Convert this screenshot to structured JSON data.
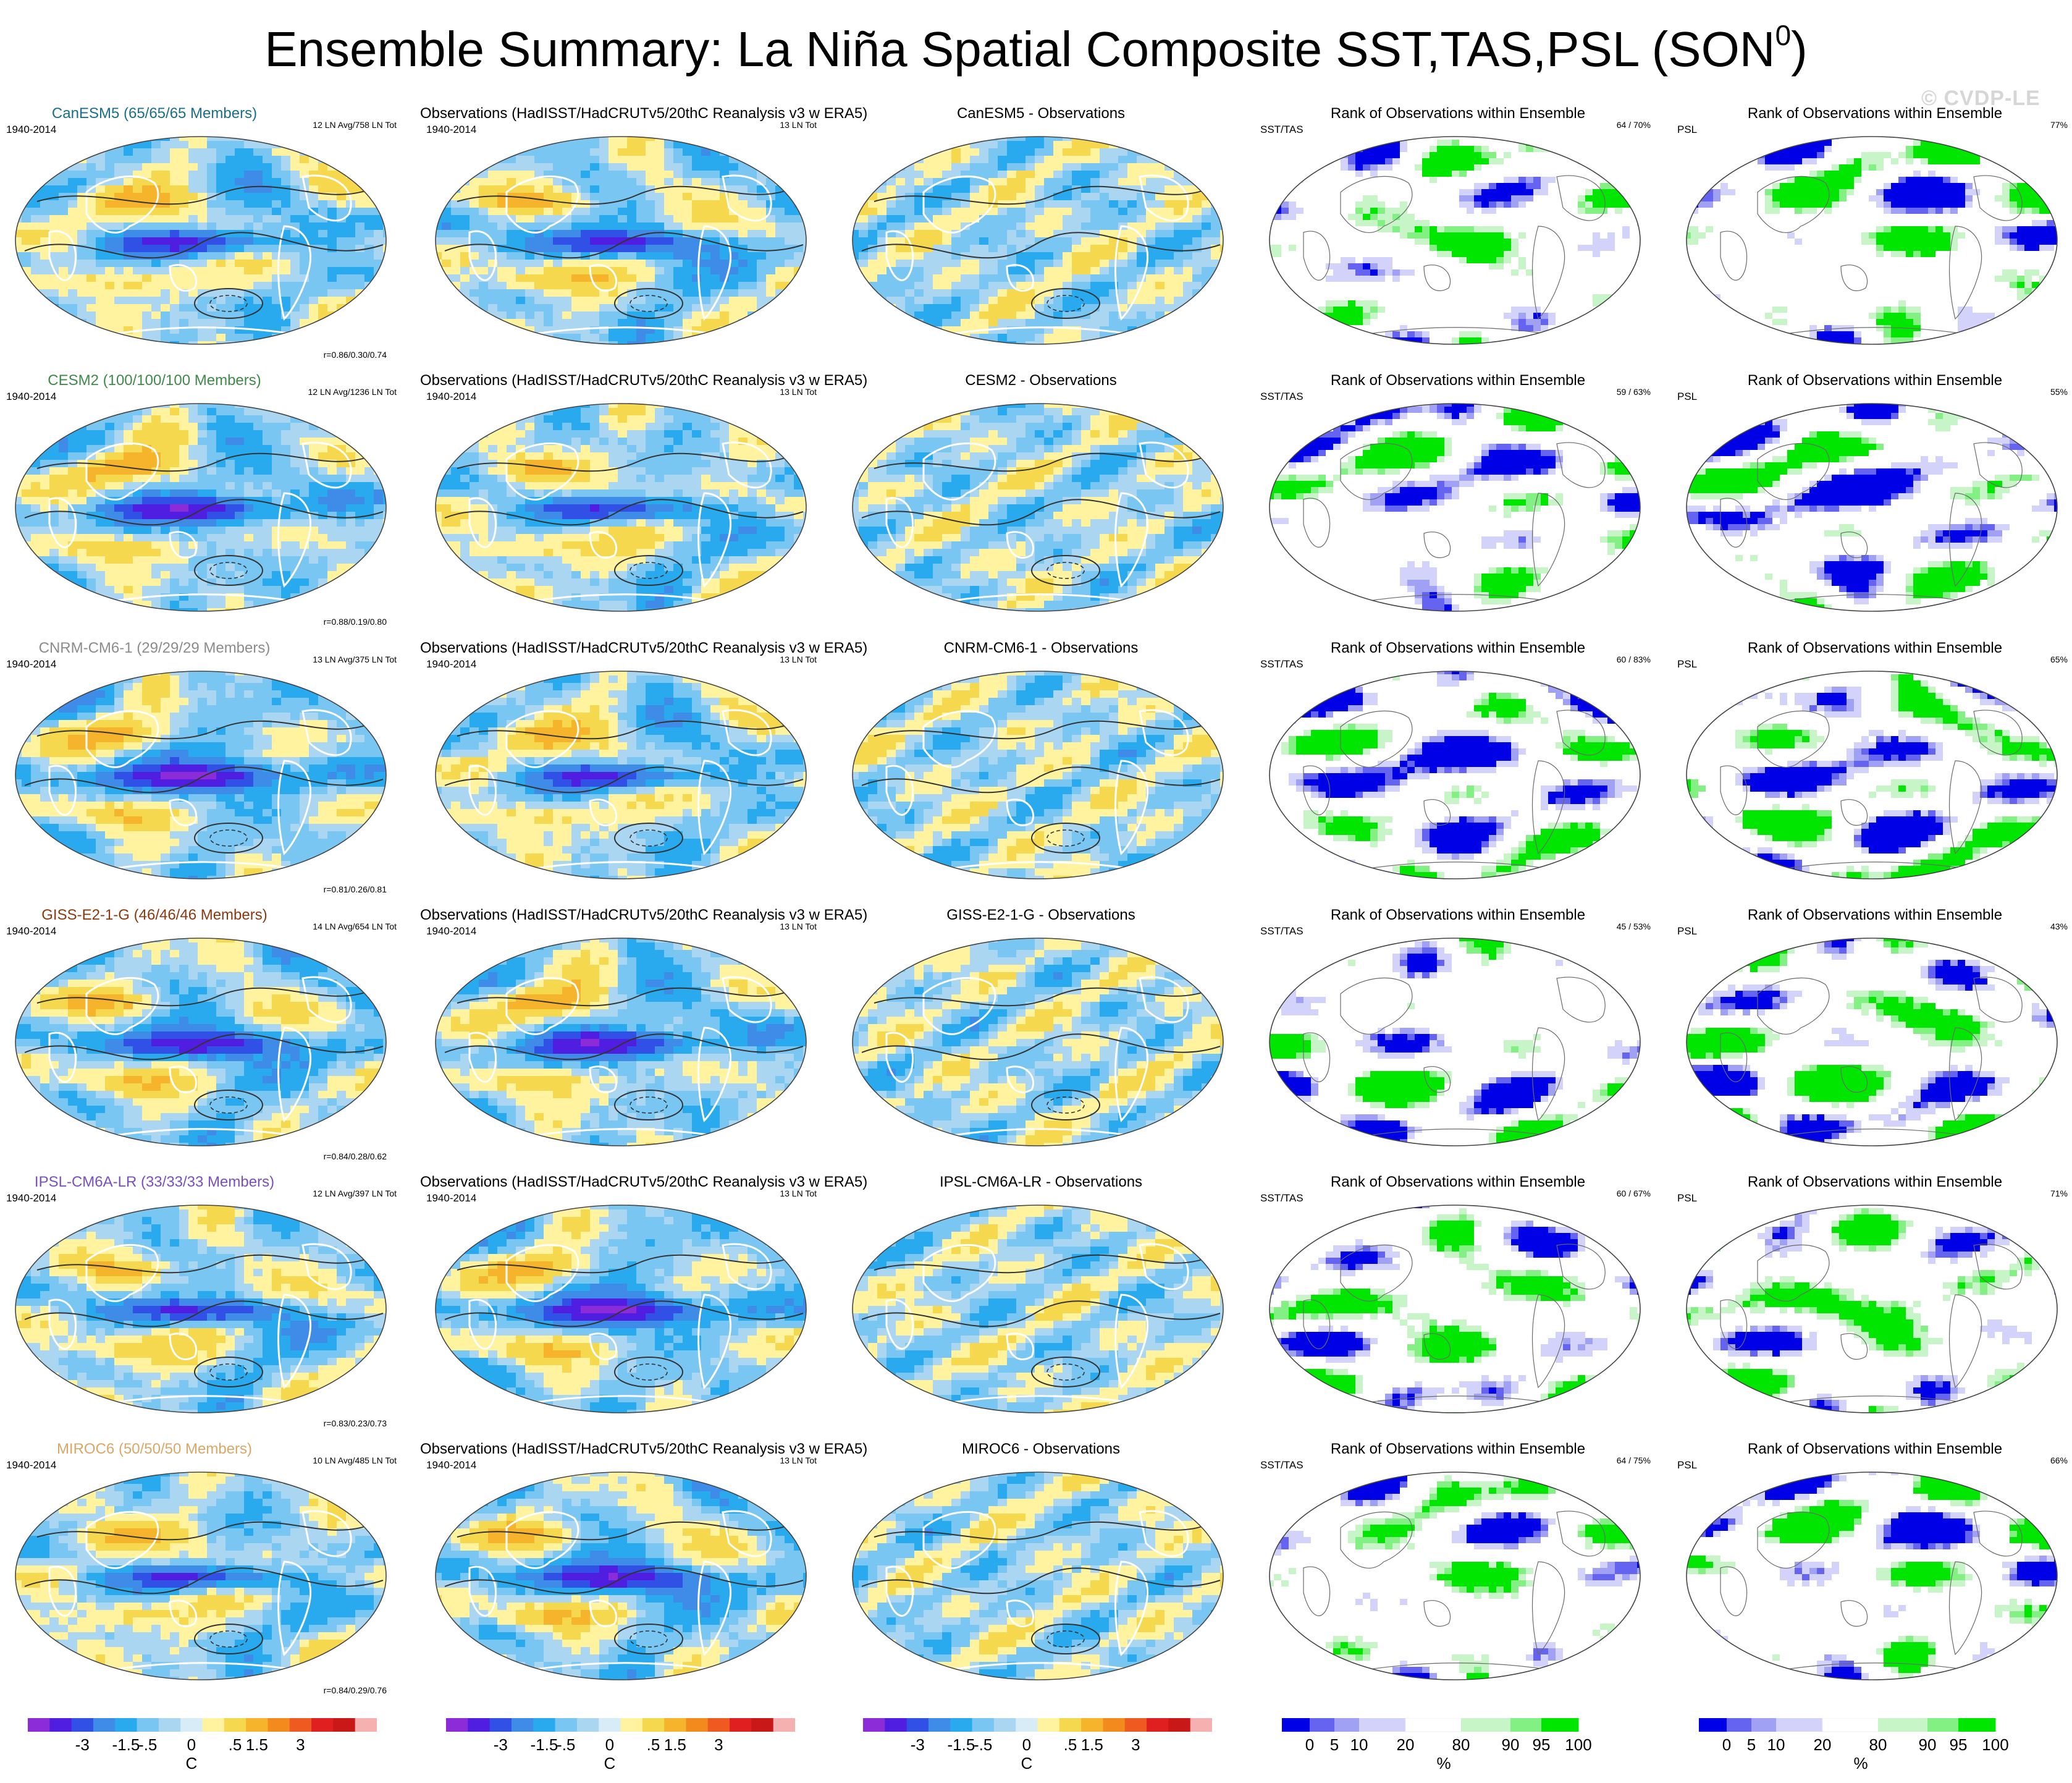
{
  "header": {
    "title": "Ensemble Summary: La Niña Spatial Composite SST,TAS,PSL (SON",
    "title_superscript": "0",
    "title_close": ")",
    "watermark": "© CVDP-LE"
  },
  "colors": {
    "blue_scale": [
      "#8c2bd8",
      "#4f1ee0",
      "#3050e6",
      "#3f8ce8",
      "#29aaee",
      "#79c6f2",
      "#aad6f2"
    ],
    "warm_scale": [
      "#fff3a0",
      "#f6d84f",
      "#f6b42d",
      "#f28a1e",
      "#ee5a20",
      "#e02020",
      "#c81818",
      "#f5b0b0"
    ],
    "rank_scale": [
      "#0000e6",
      "#6464f0",
      "#a0a0f5",
      "#d2d2fa",
      "#ffffff",
      "#c8f5c8",
      "#82f082",
      "#00e600"
    ],
    "model_title_colors": [
      "#1a6f8a",
      "#3f8a4a",
      "#8c8c8c",
      "#8a3a10",
      "#7a4fc0",
      "#d9a867"
    ]
  },
  "rows": [
    {
      "model_title": "CanESM5 (65/65/65 Members)",
      "model_period": "1940-2014",
      "model_count": "12 LN Avg/758 LN Tot",
      "corr": "r=0.86/0.30/0.74",
      "obs_title": "Observations (HadISST/HadCRUTv5/20thC Reanalysis v3 w ERA5)",
      "obs_period": "1940-2014",
      "obs_count": "13 LN Tot",
      "diff_title": "CanESM5 - Observations",
      "rank_title": "Rank of Observations within Ensemble",
      "rank_sst_label": "SST/TAS",
      "rank_sst_pct": "64 / 70%",
      "rank_psl_title": "Rank of Observations within Ensemble",
      "rank_psl_label": "PSL",
      "rank_psl_pct": "77%"
    },
    {
      "model_title": "CESM2 (100/100/100 Members)",
      "model_period": "1940-2014",
      "model_count": "12 LN Avg/1236 LN Tot",
      "corr": "r=0.88/0.19/0.80",
      "obs_title": "Observations (HadISST/HadCRUTv5/20thC Reanalysis v3 w ERA5)",
      "obs_period": "1940-2014",
      "obs_count": "13 LN Tot",
      "diff_title": "CESM2 - Observations",
      "rank_title": "Rank of Observations within Ensemble",
      "rank_sst_label": "SST/TAS",
      "rank_sst_pct": "59 / 63%",
      "rank_psl_title": "Rank of Observations within Ensemble",
      "rank_psl_label": "PSL",
      "rank_psl_pct": "55%"
    },
    {
      "model_title": "CNRM-CM6-1 (29/29/29 Members)",
      "model_period": "1940-2014",
      "model_count": "13 LN Avg/375 LN Tot",
      "corr": "r=0.81/0.26/0.81",
      "obs_title": "Observations (HadISST/HadCRUTv5/20thC Reanalysis v3 w ERA5)",
      "obs_period": "1940-2014",
      "obs_count": "13 LN Tot",
      "diff_title": "CNRM-CM6-1 - Observations",
      "rank_title": "Rank of Observations within Ensemble",
      "rank_sst_label": "SST/TAS",
      "rank_sst_pct": "60 / 83%",
      "rank_psl_title": "Rank of Observations within Ensemble",
      "rank_psl_label": "PSL",
      "rank_psl_pct": "65%"
    },
    {
      "model_title": "GISS-E2-1-G (46/46/46 Members)",
      "model_period": "1940-2014",
      "model_count": "14 LN Avg/654 LN Tot",
      "corr": "r=0.84/0.28/0.62",
      "obs_title": "Observations (HadISST/HadCRUTv5/20thC Reanalysis v3 w ERA5)",
      "obs_period": "1940-2014",
      "obs_count": "13 LN Tot",
      "diff_title": "GISS-E2-1-G - Observations",
      "rank_title": "Rank of Observations within Ensemble",
      "rank_sst_label": "SST/TAS",
      "rank_sst_pct": "45 / 53%",
      "rank_psl_title": "Rank of Observations within Ensemble",
      "rank_psl_label": "PSL",
      "rank_psl_pct": "43%"
    },
    {
      "model_title": "IPSL-CM6A-LR (33/33/33 Members)",
      "model_period": "1940-2014",
      "model_count": "12 LN Avg/397 LN Tot",
      "corr": "r=0.83/0.23/0.73",
      "obs_title": "Observations (HadISST/HadCRUTv5/20thC Reanalysis v3 w ERA5)",
      "obs_period": "1940-2014",
      "obs_count": "13 LN Tot",
      "diff_title": "IPSL-CM6A-LR - Observations",
      "rank_title": "Rank of Observations within Ensemble",
      "rank_sst_label": "SST/TAS",
      "rank_sst_pct": "60 / 67%",
      "rank_psl_title": "Rank of Observations within Ensemble",
      "rank_psl_label": "PSL",
      "rank_psl_pct": "71%"
    },
    {
      "model_title": "MIROC6 (50/50/50 Members)",
      "model_period": "1940-2014",
      "model_count": "10 LN Avg/485 LN Tot",
      "corr": "r=0.84/0.29/0.76",
      "obs_title": "Observations (HadISST/HadCRUTv5/20thC Reanalysis v3 w ERA5)",
      "obs_period": "1940-2014",
      "obs_count": "13 LN Tot",
      "diff_title": "MIROC6 - Observations",
      "rank_title": "Rank of Observations within Ensemble",
      "rank_sst_label": "SST/TAS",
      "rank_sst_pct": "64 / 75%",
      "rank_psl_title": "Rank of Observations within Ensemble",
      "rank_psl_label": "PSL",
      "rank_psl_pct": "66%"
    }
  ],
  "chart_data": [
    {
      "type": "heatmap",
      "title": "Ensemble Summary: La Niña Spatial Composite SST,TAS,PSL (SON0)",
      "panel_types": [
        "model composite",
        "observations composite",
        "model - observations",
        "rank SST/TAS",
        "rank PSL"
      ],
      "models": [
        "CanESM5",
        "CESM2",
        "CNRM-CM6-1",
        "GISS-E2-1-G",
        "IPSL-CM6A-LR",
        "MIROC6"
      ],
      "members": [
        65,
        100,
        29,
        46,
        33,
        50
      ],
      "ln_avg": [
        12,
        12,
        13,
        14,
        12,
        10
      ],
      "ln_tot": [
        758,
        1236,
        375,
        654,
        397,
        485
      ],
      "obs_ln_tot": 13,
      "pattern_correlations_sst_tas_psl": [
        [
          0.86,
          0.3,
          0.74
        ],
        [
          0.88,
          0.19,
          0.8
        ],
        [
          0.81,
          0.26,
          0.81
        ],
        [
          0.84,
          0.28,
          0.62
        ],
        [
          0.83,
          0.23,
          0.73
        ],
        [
          0.84,
          0.29,
          0.76
        ]
      ],
      "rank_sst_tas_pct": [
        [
          64,
          70
        ],
        [
          59,
          63
        ],
        [
          60,
          83
        ],
        [
          45,
          53
        ],
        [
          60,
          67
        ],
        [
          64,
          75
        ]
      ],
      "rank_psl_pct": [
        77,
        55,
        65,
        43,
        71,
        66
      ]
    },
    {
      "type": "colorbar",
      "name": "temperature",
      "unit": "C",
      "tick_labels": [
        "-3",
        "-1.5",
        "-.5",
        "0",
        ".5",
        "1.5",
        "3"
      ],
      "bins": 16
    },
    {
      "type": "colorbar",
      "name": "rank",
      "unit": "%",
      "tick_labels": [
        "0",
        "5",
        "10",
        "20",
        "80",
        "90",
        "95",
        "100"
      ],
      "bins": 8
    }
  ]
}
